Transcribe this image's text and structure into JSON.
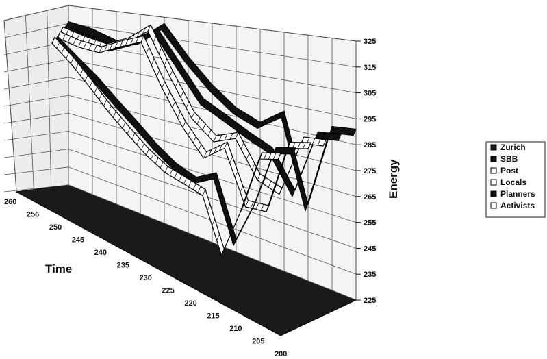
{
  "chart_data": {
    "type": "line",
    "variant": "3d-ribbon",
    "title": "",
    "xlabel": "Time",
    "ylabel": "Energy",
    "x_ticks": [
      260,
      256,
      250,
      245,
      240,
      235,
      230,
      225,
      220,
      215,
      210,
      205,
      200
    ],
    "y_ticks": [
      325,
      315,
      305,
      295,
      285,
      275,
      265,
      255,
      245,
      235,
      225
    ],
    "ylim": [
      225,
      325
    ],
    "xlim": [
      260,
      200
    ],
    "grid": true,
    "legend_position": "right",
    "x": [
      260,
      256,
      250,
      245,
      240,
      235,
      230,
      225,
      220,
      215,
      210,
      205,
      200
    ],
    "series": [
      {
        "name": "Zurich",
        "style": "solid",
        "values": [
          316,
          314,
          310,
          313,
          322,
          308,
          297,
          289,
          285,
          292,
          256,
          290,
          291
        ]
      },
      {
        "name": "SBB",
        "style": "solid",
        "values": [
          315,
          312,
          309,
          314,
          321,
          306,
          292,
          287,
          282,
          278,
          263,
          289,
          290
        ]
      },
      {
        "name": "Post",
        "style": "hollow",
        "values": [
          316,
          313,
          311,
          316,
          324,
          304,
          287,
          279,
          283,
          268,
          265,
          288,
          289
        ]
      },
      {
        "name": "Locals",
        "style": "hollow",
        "values": [
          315,
          312,
          311,
          316,
          320,
          300,
          284,
          273,
          280,
          258,
          259,
          287,
          289
        ]
      },
      {
        "name": "Planners",
        "style": "solid",
        "values": [
          314,
          305,
          297,
          288,
          280,
          272,
          266,
          263,
          268,
          243,
          262,
          286,
          288
        ]
      },
      {
        "name": "Activists",
        "style": "hollow",
        "values": [
          315,
          306,
          296,
          286,
          278,
          271,
          266,
          264,
          262,
          240,
          261,
          285,
          287
        ]
      }
    ],
    "colors": {
      "solid": "#111111",
      "hollow": "#ffffff",
      "grid": "#555555",
      "floor": "#1a1a1a"
    }
  }
}
